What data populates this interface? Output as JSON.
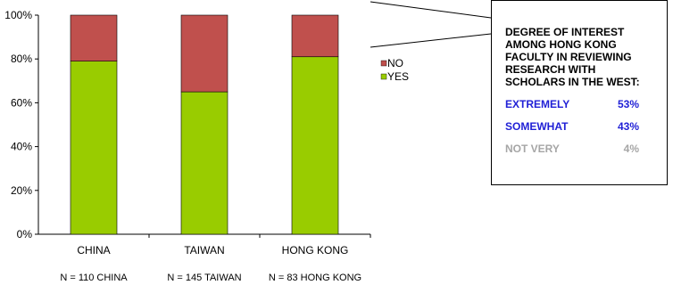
{
  "chart_data": {
    "type": "bar",
    "stacked": true,
    "percent": true,
    "categories": [
      "CHINA",
      "TAIWAN",
      "HONG KONG"
    ],
    "series": [
      {
        "name": "YES",
        "values": [
          79,
          65,
          81
        ],
        "color": "#99cc00"
      },
      {
        "name": "NO",
        "values": [
          21,
          35,
          19
        ],
        "color": "#c0504d"
      }
    ],
    "ylim": [
      0,
      100
    ],
    "yticks": [
      "0%",
      "20%",
      "40%",
      "60%",
      "80%",
      "100%"
    ],
    "sample_sizes": [
      "N =  110 CHINA",
      "N =  145 TAIWAN",
      "N = 83 HONG KONG"
    ],
    "legend": {
      "placement": "right",
      "entries": [
        "NO",
        "YES"
      ]
    },
    "grid": false
  },
  "callout": {
    "title": "DEGREE OF INTEREST\nAMONG HONG KONG\nFACULTY  IN REVIEWING\nRESEARCH WITH\nSCHOLARS IN THE WEST:",
    "rows": [
      {
        "label": "EXTREMELY",
        "value": "53%",
        "color": "#1f1fd6"
      },
      {
        "label": "SOMEWHAT",
        "value": "43%",
        "color": "#1f1fd6"
      },
      {
        "label": "NOT VERY",
        "value": "4%",
        "color": "#a6a6a6"
      }
    ]
  }
}
